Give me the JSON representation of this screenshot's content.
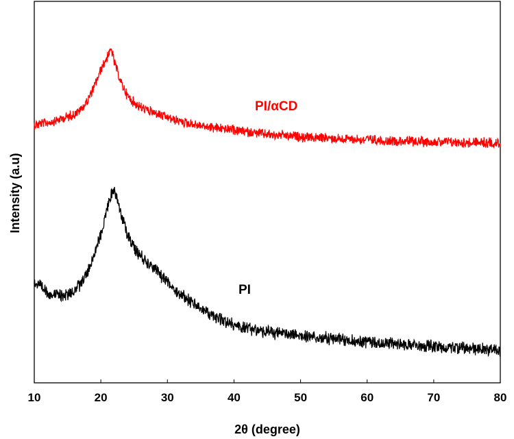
{
  "chart_data": {
    "type": "line",
    "title": "",
    "xlabel": "2θ (degree)",
    "ylabel": "Intensity (a.u)",
    "xlim": [
      10,
      80
    ],
    "xticks": [
      10,
      20,
      30,
      40,
      50,
      60,
      70,
      80
    ],
    "grid": false,
    "legend": "none",
    "series": [
      {
        "name": "PI/αCD",
        "color": "#ff0000",
        "points": [
          [
            10,
            180
          ],
          [
            12,
            177
          ],
          [
            14,
            172
          ],
          [
            16,
            165
          ],
          [
            17,
            158
          ],
          [
            18,
            145
          ],
          [
            19,
            125
          ],
          [
            20,
            100
          ],
          [
            21,
            80
          ],
          [
            21.6,
            70
          ],
          [
            22,
            88
          ],
          [
            23,
            118
          ],
          [
            24,
            138
          ],
          [
            25,
            148
          ],
          [
            26,
            155
          ],
          [
            28,
            163
          ],
          [
            30,
            170
          ],
          [
            33,
            178
          ],
          [
            36,
            183
          ],
          [
            40,
            188
          ],
          [
            43,
            192
          ],
          [
            46,
            195
          ],
          [
            50,
            198
          ],
          [
            55,
            200
          ],
          [
            60,
            202
          ],
          [
            65,
            204
          ],
          [
            70,
            205
          ],
          [
            75,
            206
          ],
          [
            80,
            207
          ]
        ]
      },
      {
        "name": "PI",
        "color": "#000000",
        "points": [
          [
            10,
            410
          ],
          [
            11,
            418
          ],
          [
            12,
            425
          ],
          [
            13,
            428
          ],
          [
            14,
            430
          ],
          [
            15,
            428
          ],
          [
            16,
            422
          ],
          [
            17,
            412
          ],
          [
            18,
            395
          ],
          [
            19,
            370
          ],
          [
            20,
            340
          ],
          [
            21,
            300
          ],
          [
            21.8,
            275
          ],
          [
            22.3,
            280
          ],
          [
            23,
            310
          ],
          [
            24,
            340
          ],
          [
            25,
            360
          ],
          [
            26,
            372
          ],
          [
            28,
            390
          ],
          [
            30,
            410
          ],
          [
            32,
            428
          ],
          [
            34,
            442
          ],
          [
            36,
            455
          ],
          [
            38,
            465
          ],
          [
            40,
            472
          ],
          [
            42,
            478
          ],
          [
            45,
            483
          ],
          [
            50,
            488
          ],
          [
            55,
            493
          ],
          [
            60,
            497
          ],
          [
            65,
            501
          ],
          [
            70,
            504
          ],
          [
            75,
            507
          ],
          [
            80,
            509
          ]
        ]
      }
    ]
  }
}
